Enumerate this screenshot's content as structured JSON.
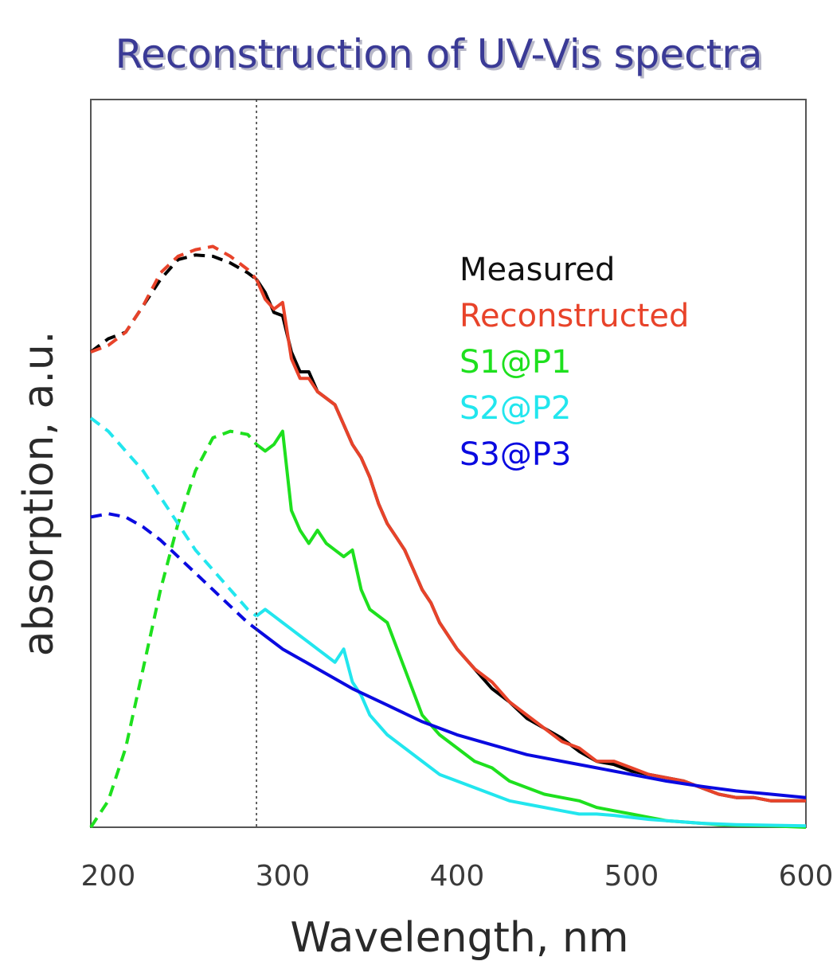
{
  "chart_data": {
    "type": "line",
    "title": "Reconstruction of UV-Vis spectra",
    "xlabel": "Wavelength, nm",
    "ylabel": "absorption, a.u.",
    "xlim": [
      190,
      600
    ],
    "ylim": [
      0,
      1
    ],
    "xticks": [
      200,
      300,
      400,
      500,
      600
    ],
    "yticks_shown": false,
    "grid": false,
    "legend_position": "right",
    "reference_line": {
      "x": 285,
      "style": "dotted",
      "color": "#333333"
    },
    "series": [
      {
        "name": "Measured",
        "color": "#000000",
        "dashed_before_x": 285,
        "x": [
          190,
          200,
          210,
          220,
          230,
          240,
          250,
          260,
          270,
          280,
          285,
          290,
          295,
          300,
          305,
          310,
          315,
          320,
          325,
          330,
          335,
          340,
          345,
          350,
          355,
          360,
          365,
          370,
          375,
          380,
          385,
          390,
          400,
          410,
          420,
          430,
          440,
          450,
          460,
          470,
          480,
          490,
          500,
          510,
          520,
          530,
          540,
          550,
          560,
          570,
          580,
          590,
          600
        ],
        "y": [
          0.72,
          0.74,
          0.75,
          0.79,
          0.83,
          0.86,
          0.867,
          0.865,
          0.855,
          0.84,
          0.83,
          0.81,
          0.78,
          0.775,
          0.72,
          0.69,
          0.69,
          0.66,
          0.65,
          0.64,
          0.61,
          0.58,
          0.56,
          0.53,
          0.49,
          0.46,
          0.44,
          0.42,
          0.39,
          0.36,
          0.34,
          0.31,
          0.27,
          0.24,
          0.21,
          0.19,
          0.165,
          0.15,
          0.135,
          0.115,
          0.1,
          0.095,
          0.085,
          0.08,
          0.075,
          0.07,
          0.06,
          0.05,
          0.045,
          0.045,
          0.04,
          0.04,
          0.04
        ]
      },
      {
        "name": "Reconstructed",
        "color": "#e8432a",
        "dashed_before_x": 285,
        "x": [
          190,
          200,
          210,
          220,
          230,
          240,
          250,
          260,
          270,
          280,
          285,
          290,
          295,
          300,
          305,
          310,
          315,
          320,
          325,
          330,
          335,
          340,
          345,
          350,
          355,
          360,
          365,
          370,
          375,
          380,
          385,
          390,
          400,
          410,
          420,
          430,
          440,
          450,
          460,
          470,
          480,
          490,
          500,
          510,
          520,
          530,
          540,
          550,
          560,
          570,
          580,
          590,
          600
        ],
        "y": [
          0.72,
          0.73,
          0.75,
          0.79,
          0.84,
          0.865,
          0.875,
          0.88,
          0.865,
          0.845,
          0.83,
          0.8,
          0.785,
          0.795,
          0.71,
          0.68,
          0.68,
          0.66,
          0.65,
          0.64,
          0.61,
          0.58,
          0.56,
          0.53,
          0.49,
          0.46,
          0.44,
          0.42,
          0.39,
          0.36,
          0.34,
          0.31,
          0.27,
          0.24,
          0.22,
          0.19,
          0.17,
          0.15,
          0.13,
          0.12,
          0.1,
          0.1,
          0.09,
          0.08,
          0.075,
          0.07,
          0.06,
          0.05,
          0.045,
          0.045,
          0.04,
          0.04,
          0.04
        ]
      },
      {
        "name": "S1@P1",
        "color": "#1ee01e",
        "dashed_before_x": 285,
        "x": [
          190,
          200,
          210,
          220,
          230,
          240,
          250,
          260,
          270,
          280,
          285,
          290,
          295,
          300,
          305,
          310,
          315,
          320,
          325,
          330,
          335,
          340,
          345,
          350,
          360,
          370,
          380,
          390,
          400,
          410,
          420,
          430,
          440,
          450,
          460,
          470,
          480,
          490,
          500,
          510,
          520,
          530,
          540,
          550,
          560,
          580,
          600
        ],
        "y": [
          0.0,
          0.04,
          0.12,
          0.24,
          0.36,
          0.46,
          0.54,
          0.59,
          0.6,
          0.595,
          0.58,
          0.57,
          0.58,
          0.6,
          0.48,
          0.45,
          0.43,
          0.45,
          0.43,
          0.42,
          0.41,
          0.42,
          0.36,
          0.33,
          0.31,
          0.24,
          0.17,
          0.14,
          0.12,
          0.1,
          0.09,
          0.07,
          0.06,
          0.05,
          0.045,
          0.04,
          0.03,
          0.025,
          0.02,
          0.015,
          0.01,
          0.008,
          0.006,
          0.004,
          0.003,
          0.002,
          0.0
        ]
      },
      {
        "name": "S2@P2",
        "color": "#22e6ee",
        "dashed_before_x": 285,
        "x": [
          190,
          200,
          210,
          220,
          230,
          240,
          250,
          260,
          270,
          280,
          285,
          290,
          295,
          300,
          305,
          310,
          315,
          320,
          325,
          330,
          335,
          340,
          345,
          350,
          360,
          370,
          380,
          390,
          400,
          410,
          420,
          430,
          440,
          450,
          460,
          470,
          480,
          490,
          500,
          510,
          520,
          530,
          540,
          550,
          560,
          580,
          600
        ],
        "y": [
          0.62,
          0.6,
          0.57,
          0.54,
          0.5,
          0.46,
          0.42,
          0.39,
          0.36,
          0.33,
          0.32,
          0.33,
          0.32,
          0.31,
          0.3,
          0.29,
          0.28,
          0.27,
          0.26,
          0.25,
          0.27,
          0.22,
          0.2,
          0.17,
          0.14,
          0.12,
          0.1,
          0.08,
          0.07,
          0.06,
          0.05,
          0.04,
          0.035,
          0.03,
          0.025,
          0.02,
          0.02,
          0.018,
          0.015,
          0.012,
          0.01,
          0.008,
          0.006,
          0.005,
          0.004,
          0.003,
          0.002
        ]
      },
      {
        "name": "S3@P3",
        "color": "#0a0ae0",
        "dashed_before_x": 285,
        "x": [
          190,
          200,
          210,
          220,
          230,
          240,
          250,
          260,
          270,
          280,
          285,
          290,
          300,
          320,
          340,
          360,
          380,
          400,
          420,
          440,
          460,
          480,
          500,
          520,
          540,
          560,
          580,
          600
        ],
        "y": [
          0.47,
          0.475,
          0.47,
          0.455,
          0.435,
          0.41,
          0.385,
          0.36,
          0.335,
          0.31,
          0.3,
          0.29,
          0.27,
          0.24,
          0.21,
          0.185,
          0.16,
          0.14,
          0.125,
          0.11,
          0.1,
          0.09,
          0.08,
          0.07,
          0.062,
          0.055,
          0.05,
          0.045
        ]
      }
    ]
  }
}
